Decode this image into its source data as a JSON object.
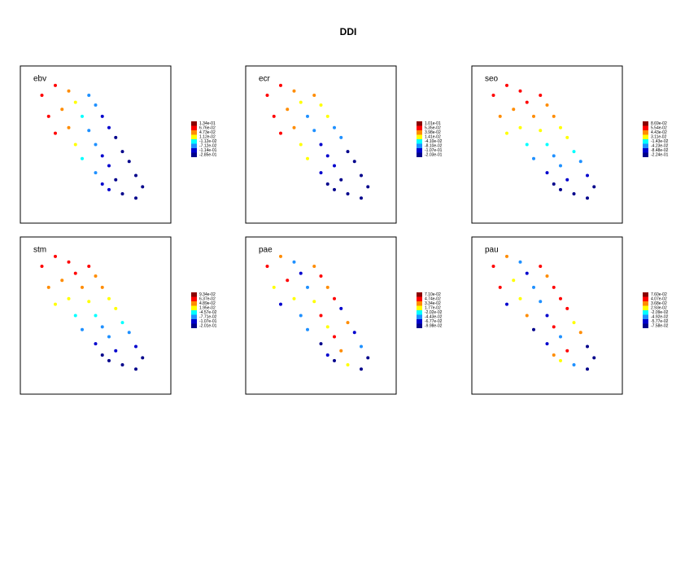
{
  "title": "DDI",
  "chart_data": [
    {
      "type": "scatter",
      "title": "ebv",
      "xlim": [
        0,
        100
      ],
      "ylim": [
        0,
        100
      ],
      "x": [
        10,
        20,
        30,
        15,
        25,
        35,
        45,
        50,
        40,
        30,
        20,
        55,
        60,
        45,
        35,
        50,
        65,
        70,
        40,
        55,
        60,
        75,
        50,
        65,
        80,
        60,
        70,
        80,
        55,
        85
      ],
      "y": [
        85,
        92,
        88,
        70,
        75,
        80,
        85,
        78,
        70,
        62,
        58,
        70,
        62,
        60,
        50,
        50,
        55,
        45,
        40,
        42,
        35,
        38,
        30,
        25,
        28,
        18,
        15,
        12,
        22,
        20
      ],
      "values": [
        0.1,
        0.1,
        0.06,
        0.1,
        0.06,
        0.03,
        -0.05,
        -0.05,
        0,
        0.06,
        0.1,
        -0.09,
        -0.09,
        -0.05,
        0.03,
        -0.05,
        -0.2,
        -0.2,
        0,
        -0.09,
        -0.09,
        -0.2,
        -0.05,
        -0.2,
        -0.2,
        -0.09,
        -0.2,
        -0.2,
        -0.09,
        -0.2
      ],
      "colorbar": [
        {
          "value": 0.134,
          "label": "1.34e-01"
        },
        {
          "value": 0.0676,
          "label": "6.76e-02"
        },
        {
          "value": 0.0473,
          "label": "4.73e-02"
        },
        {
          "value": 0.0112,
          "label": "1.12e-02"
        },
        {
          "value": -0.0112,
          "label": "-1.12e-02"
        },
        {
          "value": -0.0712,
          "label": "-7.12e-02"
        },
        {
          "value": -0.114,
          "label": "-1.14e-01"
        },
        {
          "value": -0.285,
          "label": "-2.85e-01"
        }
      ],
      "colors": [
        "#8b0000",
        "#ff0000",
        "#ff8c00",
        "#ffff00",
        "#00ffff",
        "#1e90ff",
        "#0000cd",
        "#00008b"
      ]
    },
    {
      "type": "scatter",
      "title": "ecr",
      "xlim": [
        0,
        100
      ],
      "ylim": [
        0,
        100
      ],
      "x": [
        10,
        20,
        30,
        15,
        25,
        35,
        45,
        50,
        40,
        30,
        20,
        55,
        60,
        45,
        35,
        50,
        65,
        70,
        40,
        55,
        60,
        75,
        50,
        65,
        80,
        60,
        70,
        80,
        55,
        85
      ],
      "y": [
        85,
        92,
        88,
        70,
        75,
        80,
        85,
        78,
        70,
        62,
        58,
        70,
        62,
        60,
        50,
        50,
        55,
        45,
        40,
        42,
        35,
        38,
        30,
        25,
        28,
        18,
        15,
        12,
        22,
        20
      ],
      "values": [
        0.08,
        0.08,
        0.045,
        0.08,
        0.045,
        0.02,
        0.045,
        0.02,
        -0.05,
        0.045,
        0.08,
        0.02,
        -0.05,
        -0.05,
        0.02,
        -0.09,
        -0.05,
        -0.15,
        0.02,
        -0.09,
        -0.09,
        -0.15,
        -0.09,
        -0.15,
        -0.15,
        -0.15,
        -0.15,
        -0.15,
        -0.15,
        -0.15
      ],
      "colorbar": [
        {
          "value": 0.101,
          "label": "1.01e-01"
        },
        {
          "value": 0.0535,
          "label": "5.35e-02"
        },
        {
          "value": 0.0398,
          "label": "3.98e-02"
        },
        {
          "value": 0.0141,
          "label": "1.41e-02"
        },
        {
          "value": -0.041,
          "label": "-4.10e-02"
        },
        {
          "value": -0.081,
          "label": "-8.10e-02"
        },
        {
          "value": -0.107,
          "label": "-1.07e-01"
        },
        {
          "value": -0.203,
          "label": "-2.03e-01"
        }
      ],
      "colors": [
        "#8b0000",
        "#ff0000",
        "#ff8c00",
        "#ffff00",
        "#00ffff",
        "#1e90ff",
        "#0000cd",
        "#00008b"
      ]
    },
    {
      "type": "scatter",
      "title": "seo",
      "xlim": [
        0,
        100
      ],
      "ylim": [
        0,
        100
      ],
      "x": [
        10,
        20,
        30,
        15,
        25,
        35,
        45,
        50,
        40,
        30,
        20,
        55,
        60,
        45,
        35,
        50,
        65,
        70,
        40,
        55,
        60,
        75,
        50,
        65,
        80,
        60,
        70,
        80,
        55,
        85
      ],
      "y": [
        85,
        92,
        88,
        70,
        75,
        80,
        85,
        78,
        70,
        62,
        58,
        70,
        62,
        60,
        50,
        50,
        55,
        45,
        40,
        42,
        35,
        38,
        30,
        25,
        28,
        18,
        15,
        12,
        22,
        20
      ],
      "values": [
        0.07,
        0.07,
        0.07,
        0.05,
        0.05,
        0.07,
        0.07,
        0.05,
        0.05,
        0.035,
        0.035,
        0.05,
        0.035,
        0.035,
        0,
        0,
        0.035,
        0,
        -0.03,
        -0.03,
        -0.03,
        -0.03,
        -0.06,
        -0.06,
        -0.06,
        -0.1,
        -0.1,
        -0.1,
        -0.1,
        -0.1
      ],
      "colorbar": [
        {
          "value": 0.0869,
          "label": "8.69e-02"
        },
        {
          "value": 0.0554,
          "label": "5.54e-02"
        },
        {
          "value": 0.0443,
          "label": "4.43e-02"
        },
        {
          "value": 0.0311,
          "label": "3.11e-02"
        },
        {
          "value": -0.0143,
          "label": "-1.43e-02"
        },
        {
          "value": -0.0423,
          "label": "-4.23e-02"
        },
        {
          "value": -0.0848,
          "label": "-8.48e-02"
        },
        {
          "value": -0.224,
          "label": "-2.24e-01"
        }
      ],
      "colors": [
        "#8b0000",
        "#ff0000",
        "#ff8c00",
        "#ffff00",
        "#00ffff",
        "#1e90ff",
        "#0000cd",
        "#00008b"
      ]
    },
    {
      "type": "scatter",
      "title": "stm",
      "xlim": [
        0,
        100
      ],
      "ylim": [
        0,
        100
      ],
      "x": [
        10,
        20,
        30,
        15,
        25,
        35,
        45,
        50,
        40,
        30,
        20,
        55,
        60,
        45,
        35,
        50,
        65,
        70,
        40,
        55,
        60,
        75,
        50,
        65,
        80,
        60,
        70,
        80,
        55,
        85
      ],
      "y": [
        85,
        92,
        88,
        70,
        75,
        80,
        85,
        78,
        70,
        62,
        58,
        70,
        62,
        60,
        50,
        50,
        55,
        45,
        40,
        42,
        35,
        38,
        30,
        25,
        28,
        18,
        15,
        12,
        22,
        20
      ],
      "values": [
        0.08,
        0.08,
        0.08,
        0.055,
        0.055,
        0.08,
        0.08,
        0.055,
        0.055,
        0.03,
        0.03,
        0.055,
        0.03,
        0.03,
        -0.02,
        -0.02,
        0.03,
        -0.02,
        -0.06,
        -0.06,
        -0.06,
        -0.06,
        -0.09,
        -0.09,
        -0.09,
        -0.15,
        -0.15,
        -0.15,
        -0.15,
        -0.15
      ],
      "colorbar": [
        {
          "value": 0.0934,
          "label": "9.34e-02"
        },
        {
          "value": 0.0637,
          "label": "6.37e-02"
        },
        {
          "value": 0.0489,
          "label": "4.89e-02"
        },
        {
          "value": 0.0195,
          "label": "1.95e-02"
        },
        {
          "value": -0.0457,
          "label": "-4.57e-02"
        },
        {
          "value": -0.0771,
          "label": "-7.71e-02"
        },
        {
          "value": -0.107,
          "label": "-1.07e-01"
        },
        {
          "value": -0.201,
          "label": "-2.01e-01"
        }
      ],
      "colors": [
        "#8b0000",
        "#ff0000",
        "#ff8c00",
        "#ffff00",
        "#00ffff",
        "#1e90ff",
        "#0000cd",
        "#00008b"
      ]
    },
    {
      "type": "scatter",
      "title": "pae",
      "xlim": [
        0,
        100
      ],
      "ylim": [
        0,
        100
      ],
      "x": [
        10,
        20,
        30,
        15,
        25,
        35,
        45,
        50,
        40,
        30,
        20,
        55,
        60,
        45,
        35,
        50,
        65,
        70,
        40,
        55,
        60,
        75,
        50,
        65,
        80,
        60,
        70,
        80,
        55,
        85
      ],
      "y": [
        85,
        92,
        88,
        70,
        75,
        80,
        85,
        78,
        70,
        62,
        58,
        70,
        62,
        60,
        50,
        50,
        55,
        45,
        40,
        42,
        35,
        38,
        30,
        25,
        28,
        18,
        15,
        12,
        22,
        20
      ],
      "values": [
        0.06,
        0.04,
        -0.03,
        0.02,
        0.06,
        -0.05,
        0.04,
        0.06,
        -0.03,
        0.02,
        -0.05,
        0.04,
        0.06,
        0.02,
        -0.03,
        0.06,
        -0.05,
        0.04,
        -0.03,
        0.02,
        0.06,
        -0.05,
        -0.08,
        0.04,
        -0.03,
        -0.08,
        0.02,
        -0.08,
        -0.05,
        -0.08
      ],
      "colorbar": [
        {
          "value": 0.071,
          "label": "7.10e-02"
        },
        {
          "value": 0.0474,
          "label": "4.74e-02"
        },
        {
          "value": 0.0334,
          "label": "3.34e-02"
        },
        {
          "value": 0.0177,
          "label": "1.77e-02"
        },
        {
          "value": -0.0202,
          "label": "-2.02e-02"
        },
        {
          "value": -0.0443,
          "label": "-4.43e-02"
        },
        {
          "value": -0.0677,
          "label": "-6.77e-02"
        },
        {
          "value": -0.0998,
          "label": "-9.98e-02"
        }
      ],
      "colors": [
        "#8b0000",
        "#ff0000",
        "#ff8c00",
        "#ffff00",
        "#00ffff",
        "#1e90ff",
        "#0000cd",
        "#00008b"
      ]
    },
    {
      "type": "scatter",
      "title": "pau",
      "xlim": [
        0,
        100
      ],
      "ylim": [
        0,
        100
      ],
      "x": [
        10,
        20,
        30,
        15,
        25,
        35,
        45,
        50,
        40,
        30,
        20,
        55,
        60,
        45,
        35,
        50,
        65,
        70,
        40,
        55,
        60,
        75,
        50,
        65,
        80,
        60,
        70,
        80,
        55,
        85
      ],
      "y": [
        85,
        92,
        88,
        70,
        75,
        80,
        85,
        78,
        70,
        62,
        58,
        70,
        62,
        60,
        50,
        50,
        55,
        45,
        40,
        42,
        35,
        38,
        30,
        25,
        28,
        18,
        15,
        12,
        22,
        20
      ],
      "values": [
        0.06,
        0.038,
        -0.03,
        0.05,
        0.032,
        -0.052,
        0.06,
        0.038,
        -0.03,
        0.032,
        -0.052,
        0.05,
        0.06,
        -0.03,
        0.038,
        -0.052,
        0.05,
        0.032,
        -0.06,
        0.06,
        -0.03,
        0.038,
        -0.052,
        0.05,
        -0.06,
        0.032,
        -0.03,
        -0.06,
        0.038,
        -0.06
      ],
      "colorbar": [
        {
          "value": 0.076,
          "label": "7.60e-02"
        },
        {
          "value": 0.0407,
          "label": "4.07e-02"
        },
        {
          "value": 0.0368,
          "label": "3.68e-02"
        },
        {
          "value": 0.0293,
          "label": "2.93e-02"
        },
        {
          "value": -0.0209,
          "label": "-2.09e-02"
        },
        {
          "value": -0.0492,
          "label": "-4.92e-02"
        },
        {
          "value": -0.0577,
          "label": "-5.77e-02"
        },
        {
          "value": -0.0758,
          "label": "-7.58e-02"
        }
      ],
      "colors": [
        "#8b0000",
        "#ff0000",
        "#ff8c00",
        "#ffff00",
        "#00ffff",
        "#1e90ff",
        "#0000cd",
        "#00008b"
      ]
    }
  ]
}
